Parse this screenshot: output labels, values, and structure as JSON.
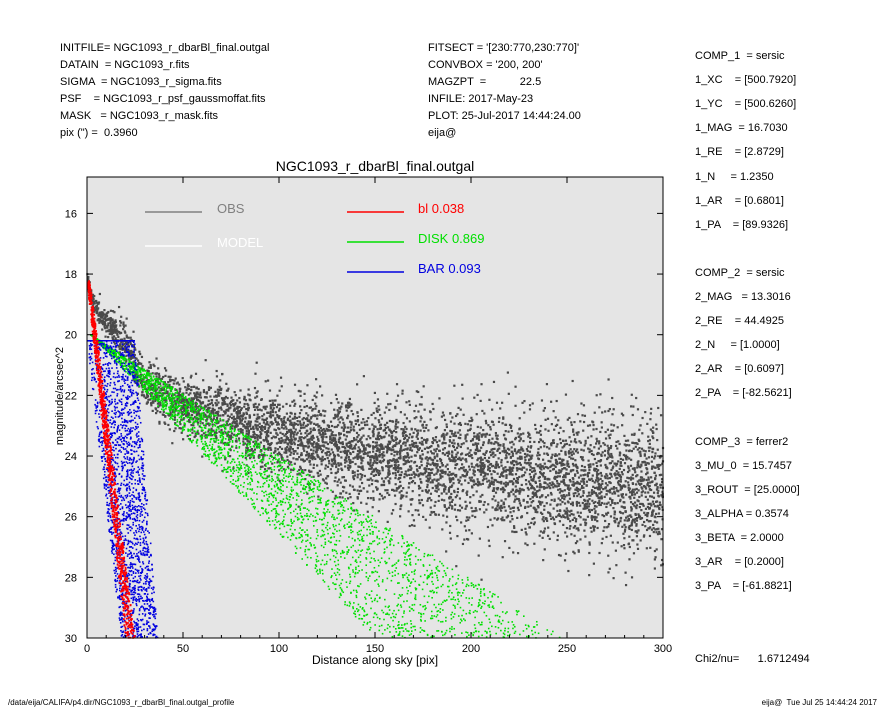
{
  "header_left": [
    "INITFILE= NGC1093_r_dbarBl_final.outgal",
    "DATAIN  = NGC1093_r.fits",
    "SIGMA  = NGC1093_r_sigma.fits",
    "PSF    = NGC1093_r_psf_gaussmoffat.fits",
    "MASK   = NGC1093_r_mask.fits",
    "pix (\") =  0.3960"
  ],
  "header_mid": [
    "FITSECT = '[230:770,230:770]'",
    "CONVBOX = '200, 200'",
    "MAGZPT  =           22.5",
    "INFILE: 2017-May-23",
    "PLOT: 25-Jul-2017 14:44:24.00",
    "eija@"
  ],
  "right_panel": [
    "COMP_1  = sersic",
    "1_XC    = [500.7920]",
    "1_YC    = [500.6260]",
    "1_MAG  = 16.7030",
    "1_RE    = [2.8729]",
    "1_N     = 1.2350",
    "1_AR    = [0.6801]",
    "1_PA    = [89.9326]",
    "",
    "COMP_2  = sersic",
    "2_MAG   = 13.3016",
    "2_RE    = 44.4925",
    "2_N     = [1.0000]",
    "2_AR    = [0.6097]",
    "2_PA    = [-82.5621]",
    "",
    "COMP_3  = ferrer2",
    "3_MU_0  = 15.7457",
    "3_ROUT  = [25.0000]",
    "3_ALPHA = 0.3574",
    "3_BETA  = 2.0000",
    "3_AR    = [0.2000]",
    "3_PA    = [-61.8821]",
    "",
    "",
    "Chi2/nu=      1.6712494"
  ],
  "footer_left": "/data/eija/CALIFA/p4.dir/NGC1093_r_dbarBl_final.outgal_profile",
  "footer_right": "eija@  Tue Jul 25 14:44:24 2017",
  "chart_data": {
    "type": "scatter",
    "title": "NGC1093_r_dbarBl_final.outgal",
    "xlabel": "Distance along sky [pix]",
    "ylabel": "magnitude/arcsec^2",
    "xlim": [
      0,
      300
    ],
    "ylim": [
      30,
      14.8
    ],
    "y_inverted": true,
    "xticks": [
      0,
      50,
      100,
      150,
      200,
      250,
      300
    ],
    "yticks": [
      16,
      18,
      20,
      22,
      24,
      26,
      28,
      30
    ],
    "background": "#e5e5e5",
    "legend": [
      {
        "label": "OBS",
        "color": "#808080",
        "column": "left"
      },
      {
        "label": "MODEL",
        "color": "#ffffff",
        "column": "left"
      },
      {
        "label": "bl  0.038",
        "color": "#ff0000",
        "column": "right"
      },
      {
        "label": "DISK  0.869",
        "color": "#00e000",
        "column": "right"
      },
      {
        "label": "BAR  0.093",
        "color": "#0000e0",
        "column": "right"
      }
    ],
    "series": [
      {
        "name": "OBS",
        "color": "#4a4a4a",
        "center_x": [
          0,
          2,
          5,
          10,
          15,
          20,
          25,
          30,
          40,
          50,
          60,
          80,
          100,
          130,
          160,
          200,
          250,
          300
        ],
        "center_y": [
          18.0,
          18.7,
          19.2,
          19.6,
          19.9,
          20.3,
          20.9,
          21.6,
          22.0,
          22.3,
          22.5,
          22.9,
          23.2,
          23.6,
          24.0,
          24.4,
          24.8,
          25.1
        ],
        "spread_y": [
          0.2,
          0.3,
          0.4,
          0.5,
          0.6,
          0.7,
          0.8,
          0.9,
          1.0,
          1.1,
          1.2,
          1.3,
          1.5,
          1.7,
          1.9,
          2.1,
          2.4,
          2.6
        ]
      },
      {
        "name": "bl",
        "color": "#ff0000",
        "band_x_start": [
          0,
          24
        ],
        "band_x_end": [
          20,
          30
        ],
        "y_start": 18.2,
        "y_end": 30
      },
      {
        "name": "DISK",
        "color": "#00e000",
        "upper_edge": [
          [
            2,
            20.0
          ],
          [
            150,
            30.0
          ]
        ],
        "lower_edge": [
          [
            2,
            20.0
          ],
          [
            248,
            30.0
          ]
        ]
      },
      {
        "name": "BAR",
        "color": "#0000e0",
        "top_y": 20.2,
        "x_top": [
          0,
          25
        ],
        "x_bottom": [
          18,
          37
        ],
        "y_bottom": 30
      }
    ]
  }
}
